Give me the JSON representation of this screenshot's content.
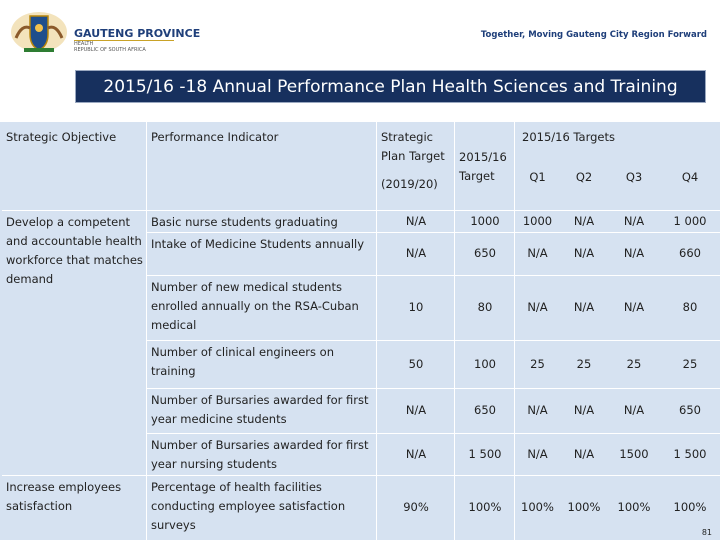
{
  "header": {
    "logo_title": "GAUTENG PROVINCE",
    "logo_dept": "HEALTH",
    "logo_country": "REPUBLIC OF SOUTH AFRICA",
    "tagline": "Together, Moving Gauteng City Region Forward"
  },
  "title": "2015/16 -18 Annual Performance Plan Health Sciences and Training",
  "table": {
    "columns": {
      "objective": "Strategic Objective",
      "indicator": "Performance Indicator",
      "strategic_target": "Strategic Plan Target",
      "strategic_period": "(2019/20)",
      "target": "2015/16 Target",
      "quarterly": "2015/16 Targets",
      "quarters": [
        "Q1",
        "Q2",
        "Q3",
        "Q4"
      ]
    },
    "objectives": [
      "Develop a competent and accountable health workforce that matches demand",
      "Increase employees satisfaction"
    ],
    "rows": [
      [
        "Basic nurse students graduating",
        "N/A",
        "1000",
        "1000",
        "N/A",
        "N/A",
        "1 000"
      ],
      [
        "Intake of Medicine Students annually",
        "N/A",
        "650",
        "N/A",
        "N/A",
        "N/A",
        "660"
      ],
      [
        "Number of new medical students enrolled annually on the RSA-Cuban medical",
        "10",
        "80",
        "N/A",
        "N/A",
        "N/A",
        "80"
      ],
      [
        "Number of clinical engineers on training",
        "50",
        "100",
        "25",
        "25",
        "25",
        "25"
      ],
      [
        "Number of Bursaries awarded for first year medicine students",
        "N/A",
        "650",
        "N/A",
        "N/A",
        "N/A",
        "650"
      ],
      [
        "Number of Bursaries awarded for first year nursing students",
        "N/A",
        "1 500",
        "N/A",
        "N/A",
        "1500",
        "1 500"
      ],
      [
        "Percentage of health facilities conducting employee satisfaction surveys",
        "90%",
        "100%",
        "100%",
        "100%",
        "100%",
        "100%"
      ]
    ]
  },
  "page_number": "81"
}
